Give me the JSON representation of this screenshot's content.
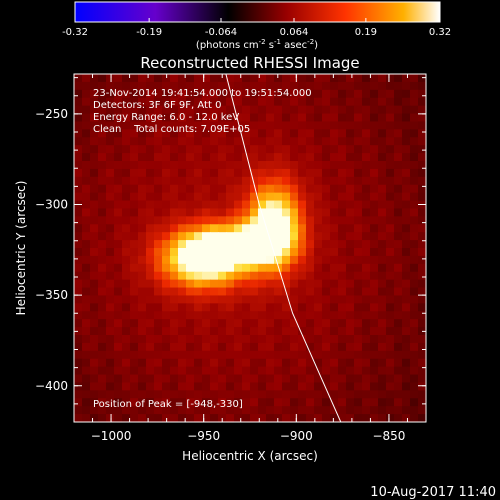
{
  "colorbar": {
    "ticks": [
      "-0.32",
      "-0.19",
      "-0.064",
      "0.064",
      "0.19",
      "0.32"
    ],
    "tick_values": [
      -0.32,
      -0.19,
      -0.064,
      0.064,
      0.19,
      0.32
    ],
    "range": [
      -0.32,
      0.32
    ],
    "units_main": "(photons cm",
    "units_sup1": "-2",
    "units_s": " s",
    "units_sup2": "-1",
    "units_asec": " asec",
    "units_sup3": "-2",
    "units_close": ")",
    "colors": [
      "#0000ff",
      "#6600cc",
      "#000000",
      "#990000",
      "#ff3300",
      "#ffb000",
      "#ffffff"
    ]
  },
  "info": {
    "time": "23-Nov-2014 19:41:54.000 to 19:51:54.000",
    "detectors": "Detectors: 3F 6F 9F, Att 0",
    "energy": "Energy Range: 6.0 - 12.0 keV",
    "clean": "Clean    Total counts: 7.09E+05",
    "peak": "Position of Peak = [-948,-330]"
  },
  "footer": {
    "timestamp": "10-Aug-2017 11:40"
  },
  "chart_data": {
    "type": "heatmap",
    "title": "Reconstructed RHESSI Image",
    "xlabel": "Heliocentric X (arcsec)",
    "ylabel": "Heliocentric Y (arcsec)",
    "xlim": [
      -1020,
      -830
    ],
    "ylim": [
      -420,
      -228
    ],
    "x_ticks": [
      -1000,
      -950,
      -900,
      -850
    ],
    "x_tick_labels": [
      "−1000",
      "−950",
      "−900",
      "−850"
    ],
    "y_ticks": [
      -250,
      -300,
      -350,
      -400
    ],
    "y_tick_labels": [
      "−250",
      "−300",
      "−350",
      "−400"
    ],
    "sources": [
      {
        "x": -950,
        "y": -330,
        "sx": 16,
        "sy": 11,
        "amp": 1.0
      },
      {
        "x": -912,
        "y": -312,
        "sx": 10,
        "sy": 16,
        "amp": 0.95
      },
      {
        "x": -930,
        "y": -322,
        "sx": 16,
        "sy": 8,
        "amp": 0.6
      }
    ],
    "background_level": 0.18,
    "peak": [
      -948,
      -330
    ],
    "limb": [
      [
        -938,
        -228
      ],
      [
        -920,
        -300
      ],
      [
        -902,
        -360
      ],
      [
        -876,
        -420
      ]
    ]
  }
}
